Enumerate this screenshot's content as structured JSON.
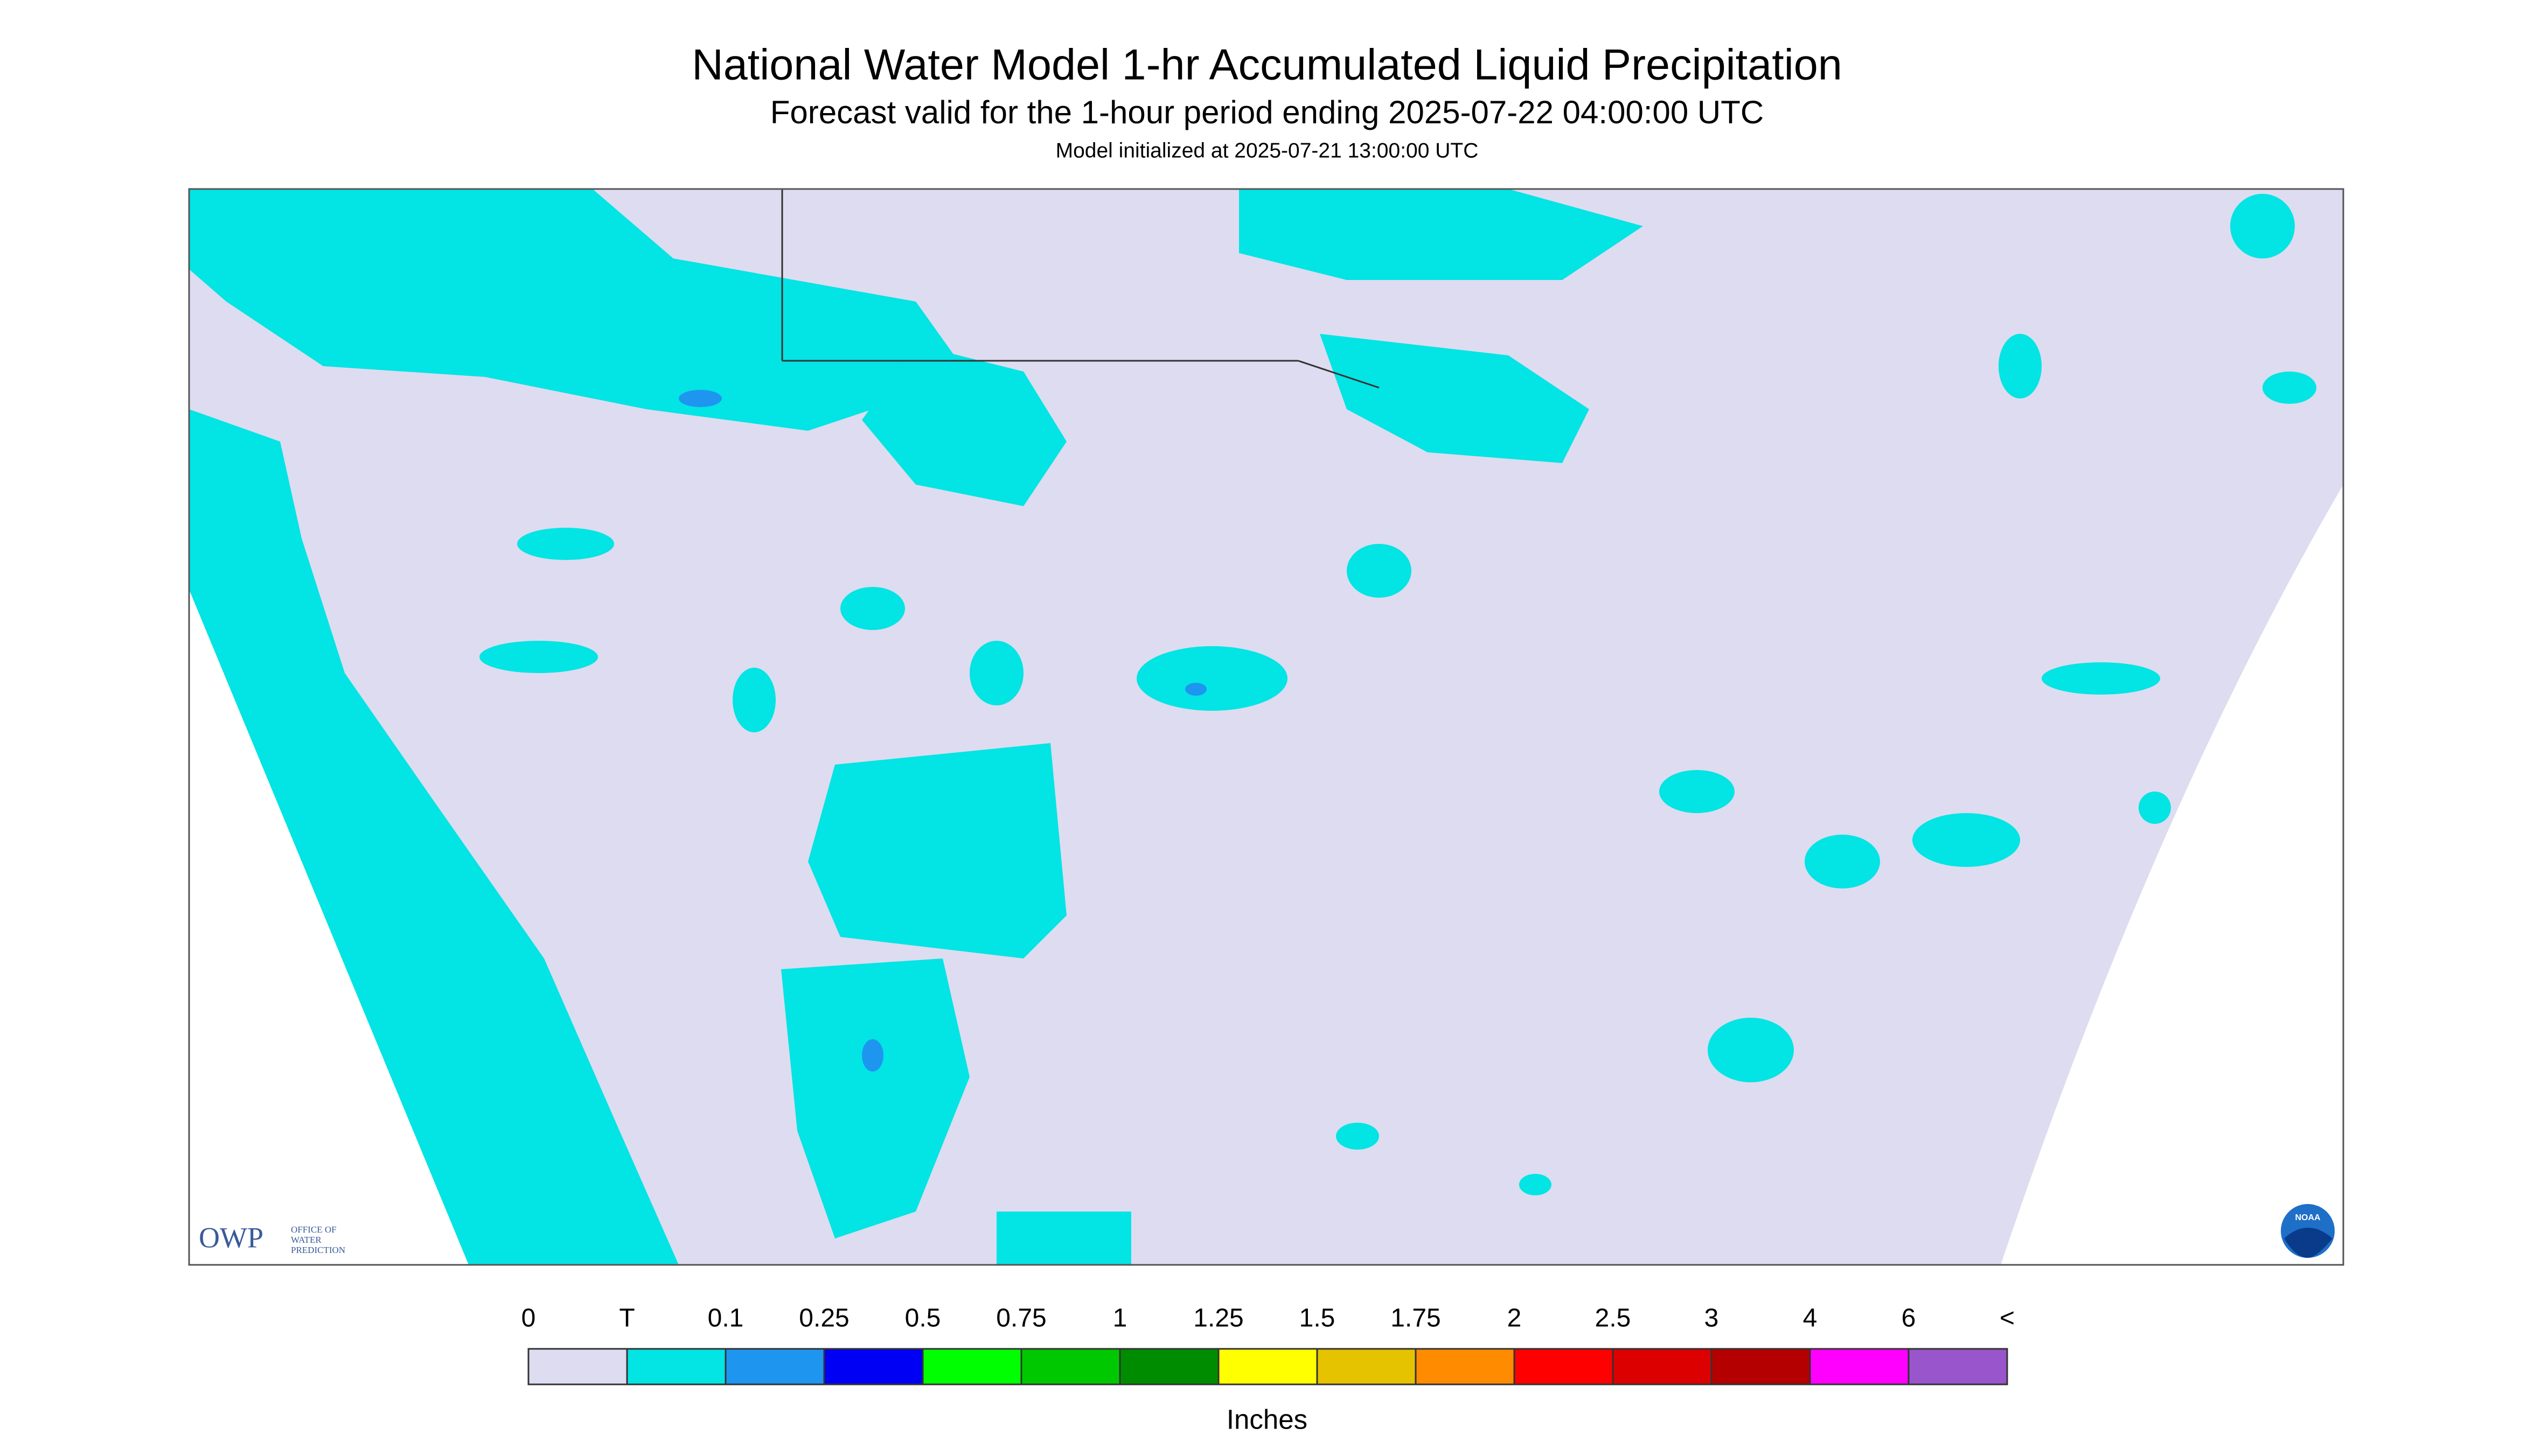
{
  "title": "National Water Model 1-hr Accumulated Liquid Precipitation",
  "subtitle": "Forecast valid for the 1-hour period ending 2025-07-22 04:00:00 UTC",
  "init": "Model initialized at 2025-07-21 13:00:00 UTC",
  "legend": {
    "labels": [
      "0",
      "T",
      "0.1",
      "0.25",
      "0.5",
      "0.75",
      "1",
      "1.25",
      "1.5",
      "1.75",
      "2",
      "2.5",
      "3",
      "4",
      "6",
      "<"
    ],
    "colors": [
      "#dedcf0",
      "#03e4e4",
      "#1e96f0",
      "#0000f5",
      "#00ff00",
      "#00c800",
      "#008c00",
      "#ffff00",
      "#e6c300",
      "#ff8c00",
      "#ff0000",
      "#dc0000",
      "#b40000",
      "#ff00ff",
      "#9955cc"
    ],
    "unit": "Inches"
  },
  "logo": {
    "owp": "OWP",
    "owp_lines": [
      "OFFICE OF",
      "WATER",
      "PREDICTION"
    ],
    "noaa": "NOAA"
  }
}
